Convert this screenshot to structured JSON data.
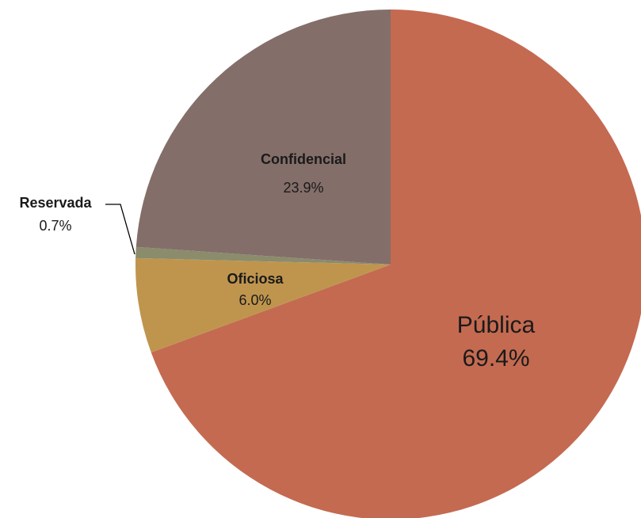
{
  "chart_data": {
    "type": "pie",
    "title": "",
    "slices": [
      {
        "label": "Pública",
        "value": 69.4,
        "value_label": "69.4%",
        "color": "#c46a51"
      },
      {
        "label": "Oficiosa",
        "value": 6.0,
        "value_label": "6.0%",
        "color": "#bf954e"
      },
      {
        "label": "Reservada",
        "value": 0.7,
        "value_label": "0.7%",
        "color": "#8a8c6c"
      },
      {
        "label": "Confidencial",
        "value": 23.9,
        "value_label": "23.9%",
        "color": "#846e69"
      }
    ],
    "start_angle_deg": 0,
    "direction": "clockwise",
    "legend": "none"
  }
}
